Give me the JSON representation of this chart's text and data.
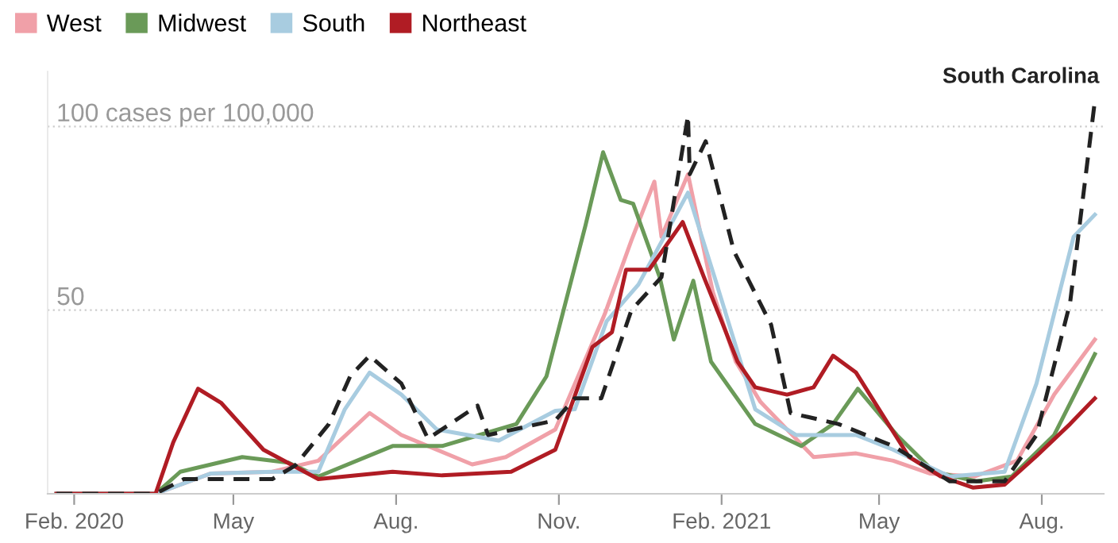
{
  "chart_data": {
    "type": "line",
    "legend": "top left",
    "grid": "y",
    "line_style": "solid",
    "marker": "none",
    "xlim": [
      "2020-01-17",
      "2021-09-05"
    ],
    "ylim": [
      0,
      115
    ],
    "xticks": [
      {
        "value": "2020-02-01",
        "label": "Feb. 2020"
      },
      {
        "value": "2020-05-01",
        "label": "May"
      },
      {
        "value": "2020-08-01",
        "label": "Aug."
      },
      {
        "value": "2020-11-01",
        "label": "Nov."
      },
      {
        "value": "2021-02-01",
        "label": "Feb. 2021"
      },
      {
        "value": "2021-05-01",
        "label": "May"
      },
      {
        "value": "2021-08-01",
        "label": "Aug."
      }
    ],
    "yticks": [
      50,
      100
    ],
    "ylabel": "cases per 100,000",
    "annotations": [
      {
        "text": "South Carolina",
        "x": "2021-08-31",
        "y": 107
      }
    ],
    "series": [
      {
        "name": "West",
        "color": "#f0a0a8",
        "x": [
          "2020-01-22",
          "2020-03-18",
          "2020-04-18",
          "2020-05-23",
          "2020-06-18",
          "2020-07-17",
          "2020-08-04",
          "2020-09-13",
          "2020-10-02",
          "2020-10-30",
          "2020-11-27",
          "2020-12-12",
          "2020-12-25",
          "2020-12-29",
          "2021-01-13",
          "2021-01-27",
          "2021-02-09",
          "2021-02-23",
          "2021-03-25",
          "2021-04-18",
          "2021-05-09",
          "2021-05-30",
          "2021-06-24",
          "2021-07-18",
          "2021-08-08",
          "2021-08-31"
        ],
        "values": [
          0,
          0,
          5.5,
          6,
          9,
          22,
          16,
          8,
          10,
          17.5,
          49,
          69,
          85,
          70,
          87,
          55,
          36,
          25,
          10,
          11,
          9,
          5.5,
          4.7,
          9,
          27,
          42
        ]
      },
      {
        "name": "Midwest",
        "color": "#6a9a58",
        "x": [
          "2020-01-22",
          "2020-03-18",
          "2020-04-01",
          "2020-05-06",
          "2020-06-01",
          "2020-06-18",
          "2020-07-30",
          "2020-08-27",
          "2020-09-17",
          "2020-10-08",
          "2020-10-25",
          "2020-11-16",
          "2020-11-26",
          "2020-12-06",
          "2020-12-13",
          "2020-12-28",
          "2021-01-05",
          "2021-01-16",
          "2021-01-26",
          "2021-02-20",
          "2021-03-18",
          "2021-04-05",
          "2021-04-19",
          "2021-05-11",
          "2021-06-01",
          "2021-06-25",
          "2021-07-15",
          "2021-08-08",
          "2021-08-31"
        ],
        "values": [
          0,
          0,
          6,
          10,
          8.5,
          4.7,
          13,
          13,
          16,
          19,
          32,
          73,
          93,
          80,
          79,
          59,
          42,
          58,
          36,
          19,
          13,
          19,
          28.6,
          16,
          6,
          3.4,
          4.7,
          16,
          38
        ]
      },
      {
        "name": "South",
        "color": "#a8cce0",
        "x": [
          "2020-01-22",
          "2020-03-18",
          "2020-04-18",
          "2020-05-23",
          "2020-06-18",
          "2020-07-03",
          "2020-07-17",
          "2020-08-04",
          "2020-08-24",
          "2020-09-28",
          "2020-10-30",
          "2020-11-10",
          "2020-11-28",
          "2020-12-16",
          "2021-01-13",
          "2021-01-28",
          "2021-02-20",
          "2021-03-15",
          "2021-04-18",
          "2021-05-09",
          "2021-06-10",
          "2021-07-11",
          "2021-07-29",
          "2021-08-19",
          "2021-08-31"
        ],
        "values": [
          0,
          0,
          5.5,
          6,
          6,
          23,
          33,
          27,
          17.5,
          14.5,
          22.6,
          23,
          47,
          57,
          82,
          59,
          23,
          16,
          16,
          12,
          4.7,
          6,
          30,
          70,
          76
        ]
      },
      {
        "name": "Northeast",
        "color": "#b01c24",
        "x": [
          "2020-01-22",
          "2020-03-18",
          "2020-03-28",
          "2020-04-11",
          "2020-04-24",
          "2020-05-18",
          "2020-06-18",
          "2020-07-30",
          "2020-08-27",
          "2020-10-05",
          "2020-10-30",
          "2020-11-20",
          "2020-12-01",
          "2020-12-09",
          "2020-12-22",
          "2021-01-10",
          "2021-01-22",
          "2021-02-01",
          "2021-02-10",
          "2021-02-20",
          "2021-03-10",
          "2021-03-25",
          "2021-04-05",
          "2021-04-18",
          "2021-05-01",
          "2021-05-18",
          "2021-06-05",
          "2021-06-23",
          "2021-07-11",
          "2021-07-29",
          "2021-08-17",
          "2021-08-31"
        ],
        "values": [
          0,
          0,
          14,
          28.6,
          24.8,
          12,
          4,
          6,
          5,
          6,
          12,
          40,
          44,
          61,
          61,
          74,
          59,
          47,
          36,
          29,
          27,
          29,
          37.6,
          33,
          23,
          10,
          4.7,
          1.7,
          2.5,
          10.3,
          19,
          26
        ]
      },
      {
        "color": "#222222",
        "line_style": "dashed",
        "x": [
          "2020-01-22",
          "2020-03-18",
          "2020-04-03",
          "2020-05-23",
          "2020-06-05",
          "2020-06-24",
          "2020-07-06",
          "2020-07-17",
          "2020-08-04",
          "2020-08-19",
          "2020-09-16",
          "2020-09-22",
          "2020-10-30",
          "2020-11-10",
          "2020-11-25",
          "2020-12-12",
          "2020-12-29",
          "2021-01-13",
          "2021-01-14",
          "2021-01-23",
          "2021-02-08",
          "2021-03-01",
          "2021-03-12",
          "2021-04-08",
          "2021-05-09",
          "2021-06-10",
          "2021-07-11",
          "2021-07-29",
          "2021-08-17",
          "2021-08-31"
        ],
        "values": [
          0,
          0,
          4,
          4,
          7.7,
          19,
          32,
          37.6,
          30,
          15,
          24,
          16,
          20,
          26,
          26,
          50,
          59,
          103,
          87,
          96,
          66,
          46,
          22,
          19,
          13,
          3.4,
          3.4,
          16,
          52,
          107
        ]
      }
    ]
  }
}
